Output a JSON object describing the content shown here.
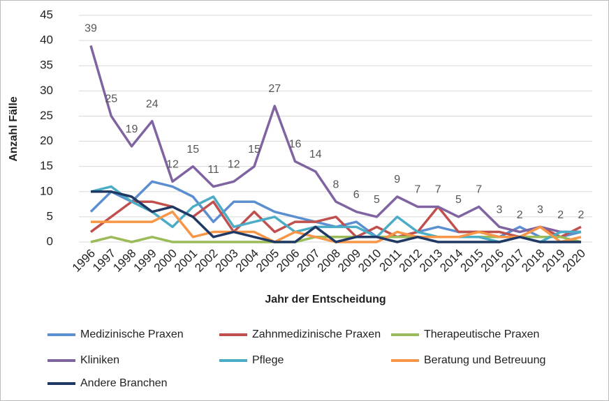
{
  "chart_data": {
    "type": "line",
    "y_label": "Anzahl Fälle",
    "x_label": "Jahr der Entscheidung",
    "categories": [
      "1996",
      "1997",
      "1998",
      "1999",
      "2000",
      "2001",
      "2002",
      "2003",
      "2004",
      "2005",
      "2006",
      "2007",
      "2008",
      "2009",
      "2010",
      "2011",
      "2012",
      "2013",
      "2014",
      "2015",
      "2016",
      "2017",
      "2018",
      "2019",
      "2020"
    ],
    "ylim": [
      0,
      45
    ],
    "yticks": [
      0,
      5,
      10,
      15,
      20,
      25,
      30,
      35,
      40,
      45
    ],
    "grid": true,
    "data_labels_series": 3,
    "series": [
      {
        "name": "Medizinische Praxen",
        "color": "#5b8fcf",
        "values": [
          6,
          10,
          8,
          12,
          11,
          9,
          4,
          8,
          8,
          6,
          5,
          4,
          3,
          4,
          1,
          1,
          2,
          3,
          2,
          2,
          1,
          3,
          1,
          1,
          2
        ]
      },
      {
        "name": "Zahnmedizinische Praxen",
        "color": "#c0504d",
        "values": [
          2,
          5,
          8,
          8,
          7,
          5,
          8,
          2,
          6,
          2,
          4,
          4,
          5,
          1,
          3,
          1,
          2,
          7,
          2,
          2,
          2,
          1,
          3,
          1,
          3
        ]
      },
      {
        "name": "Therapeutische Praxen",
        "color": "#9bbb59",
        "values": [
          0,
          1,
          0,
          1,
          0,
          0,
          0,
          0,
          0,
          0,
          0,
          1,
          1,
          1,
          1,
          1,
          1,
          1,
          1,
          1,
          1,
          1,
          1,
          1,
          0
        ]
      },
      {
        "name": "Kliniken",
        "color": "#8064a2",
        "values": [
          39,
          25,
          19,
          24,
          12,
          15,
          11,
          12,
          15,
          27,
          16,
          14,
          8,
          6,
          5,
          9,
          7,
          7,
          5,
          7,
          3,
          2,
          3,
          2,
          2
        ]
      },
      {
        "name": "Pflege",
        "color": "#4bacc6",
        "values": [
          10,
          11,
          8,
          6,
          3,
          7,
          9,
          3,
          4,
          5,
          2,
          3,
          3,
          3,
          1,
          5,
          2,
          1,
          1,
          1,
          0,
          1,
          0,
          2,
          2
        ]
      },
      {
        "name": "Beratung und Betreuung",
        "color": "#f79646",
        "values": [
          4,
          4,
          4,
          4,
          6,
          1,
          2,
          2,
          2,
          0,
          2,
          1,
          0,
          0,
          0,
          2,
          1,
          1,
          1,
          2,
          1,
          1,
          3,
          0,
          1
        ]
      },
      {
        "name": "Andere Branchen",
        "color": "#1f3864",
        "values": [
          10,
          10,
          9,
          6,
          7,
          5,
          1,
          2,
          1,
          0,
          0,
          3,
          0,
          1,
          1,
          0,
          1,
          0,
          0,
          0,
          0,
          1,
          0,
          0,
          0
        ]
      }
    ]
  }
}
